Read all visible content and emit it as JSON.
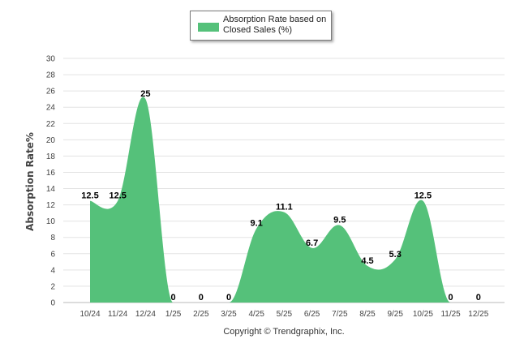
{
  "chart_data": {
    "type": "area",
    "categories": [
      "10/24",
      "11/24",
      "12/24",
      "1/25",
      "2/25",
      "3/25",
      "4/25",
      "5/25",
      "6/25",
      "7/25",
      "8/25",
      "9/25",
      "10/25",
      "11/25",
      "12/25"
    ],
    "series": [
      {
        "name": "Absorption Rate based on Closed Sales (%)",
        "values": [
          12.5,
          12.5,
          25,
          0,
          0,
          0,
          9.1,
          11.1,
          6.7,
          9.5,
          4.5,
          5.3,
          12.5,
          0,
          0
        ],
        "labels": [
          "12.5",
          "12.5",
          "25",
          "0",
          "0",
          "0",
          "9.1",
          "11.1",
          "6.7",
          "9.5",
          "4.5",
          "5.3",
          "12.5",
          "0",
          "0"
        ],
        "color": "#55c17a"
      }
    ],
    "ylabel": "Absorption Rate%",
    "ylim": [
      0,
      30
    ],
    "yticks": [
      0,
      2,
      4,
      6,
      8,
      10,
      12,
      14,
      16,
      18,
      20,
      22,
      24,
      26,
      28,
      30
    ],
    "grid": true,
    "legend_position": "top-center"
  },
  "legend": {
    "line1": "Absorption Rate based on",
    "line2": "Closed Sales (%)"
  },
  "copyright": "Copyright © Trendgraphix, Inc."
}
